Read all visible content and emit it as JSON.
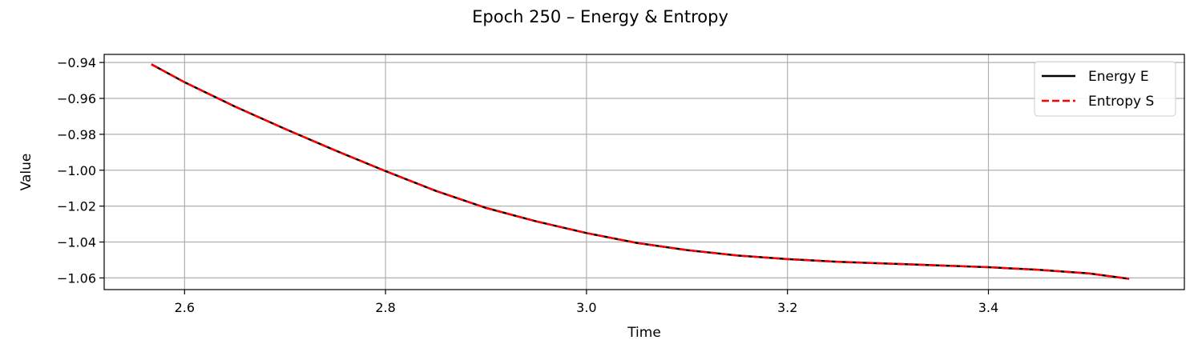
{
  "chart_data": {
    "type": "line",
    "title": "Epoch 250 – Energy & Entropy",
    "xlabel": "Time",
    "ylabel": "Value",
    "xlim": [
      2.52,
      3.595
    ],
    "ylim": [
      -1.0665,
      -0.9355
    ],
    "xticks": [
      2.6,
      2.8,
      3.0,
      3.2,
      3.4
    ],
    "xtick_labels": [
      "2.6",
      "2.8",
      "3.0",
      "3.2",
      "3.4"
    ],
    "yticks": [
      -0.94,
      -0.96,
      -0.98,
      -1.0,
      -1.02,
      -1.04,
      -1.06
    ],
    "ytick_labels": [
      "−0.94",
      "−0.96",
      "−0.98",
      "−1.00",
      "−1.02",
      "−1.04",
      "−1.06"
    ],
    "grid": true,
    "legend_position": "upper right",
    "series": [
      {
        "name": "Energy E",
        "color": "#000000",
        "style": "solid",
        "x": [
          2.567,
          2.6,
          2.65,
          2.7,
          2.75,
          2.8,
          2.85,
          2.9,
          2.95,
          3.0,
          3.05,
          3.1,
          3.15,
          3.2,
          3.25,
          3.3,
          3.35,
          3.4,
          3.45,
          3.5,
          3.54
        ],
        "y": [
          -0.941,
          -0.951,
          -0.9645,
          -0.977,
          -0.989,
          -1.0005,
          -1.0115,
          -1.021,
          -1.0285,
          -1.035,
          -1.0405,
          -1.0445,
          -1.0475,
          -1.0495,
          -1.051,
          -1.052,
          -1.053,
          -1.054,
          -1.0555,
          -1.0575,
          -1.0605
        ]
      },
      {
        "name": "Entropy S",
        "color": "#ff0000",
        "style": "dashed",
        "x": [
          2.567,
          2.6,
          2.65,
          2.7,
          2.75,
          2.8,
          2.85,
          2.9,
          2.95,
          3.0,
          3.05,
          3.1,
          3.15,
          3.2,
          3.25,
          3.3,
          3.35,
          3.4,
          3.45,
          3.5,
          3.54
        ],
        "y": [
          -0.941,
          -0.951,
          -0.9645,
          -0.977,
          -0.989,
          -1.0005,
          -1.0115,
          -1.021,
          -1.0285,
          -1.035,
          -1.0405,
          -1.0445,
          -1.0475,
          -1.0495,
          -1.051,
          -1.052,
          -1.053,
          -1.054,
          -1.0555,
          -1.0575,
          -1.0605
        ]
      }
    ]
  }
}
